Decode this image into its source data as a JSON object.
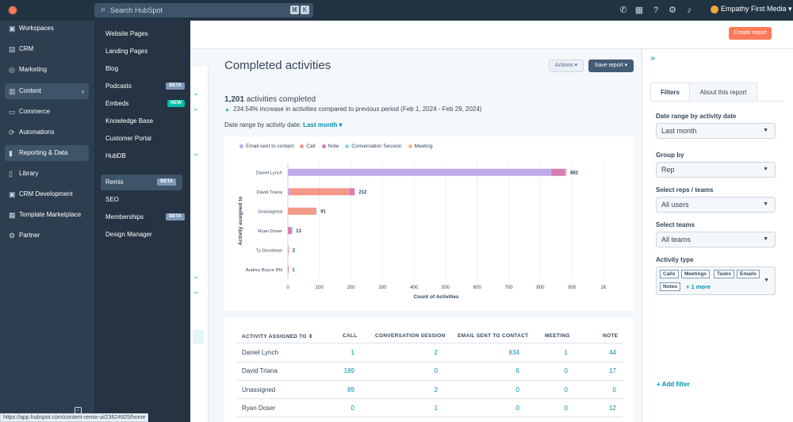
{
  "topbar": {
    "search_placeholder": "Search HubSpot",
    "kbd1": "⌘",
    "kbd2": "K",
    "account_name": "Empathy First Media"
  },
  "leftnav": {
    "items": [
      {
        "label": "Workspaces",
        "icon": "workspaces-icon"
      },
      {
        "label": "CRM",
        "icon": "crm-icon"
      },
      {
        "label": "Marketing",
        "icon": "marketing-icon"
      },
      {
        "label": "Content",
        "icon": "content-icon"
      },
      {
        "label": "Commerce",
        "icon": "commerce-icon"
      },
      {
        "label": "Automations",
        "icon": "automations-icon"
      },
      {
        "label": "Reporting & Data",
        "icon": "reporting-icon"
      },
      {
        "label": "Library",
        "icon": "library-icon"
      },
      {
        "label": "CRM Development",
        "icon": "crm-development-icon"
      },
      {
        "label": "Template Marketplace",
        "icon": "template-marketplace-icon"
      },
      {
        "label": "Partner",
        "icon": "partner-icon"
      }
    ]
  },
  "flyout": {
    "items": [
      {
        "label": "Website Pages",
        "badge": ""
      },
      {
        "label": "Landing Pages",
        "badge": ""
      },
      {
        "label": "Blog",
        "badge": ""
      },
      {
        "label": "Podcasts",
        "badge": "BETA"
      },
      {
        "label": "Embeds",
        "badge": "NEW"
      },
      {
        "label": "Knowledge Base",
        "badge": ""
      },
      {
        "label": "Customer Portal",
        "badge": ""
      },
      {
        "label": "HubDB",
        "badge": ""
      },
      {
        "label": "Remix",
        "badge": "BETA"
      },
      {
        "label": "SEO",
        "badge": ""
      },
      {
        "label": "Memberships",
        "badge": "BETA"
      },
      {
        "label": "Design Manager",
        "badge": ""
      }
    ]
  },
  "header": {
    "create_report": "Create report"
  },
  "report": {
    "title": "Completed activities",
    "actions": "Actions ▾",
    "save": "Save report ▾",
    "count": "1,201",
    "count_suffix": " activities completed",
    "delta": "234.54% increase in activities compared to previous period (Feb 1, 2024 - Feb 29, 2024)",
    "date_range_label": "Date range by activity date: ",
    "date_range_value": "Last month ▾"
  },
  "chart_data": {
    "type": "bar",
    "orientation": "horizontal",
    "stacked": true,
    "categories": [
      "Daniel Lynch",
      "David Triana",
      "Unassigned",
      "Ryan Doser",
      "Ty Goodman",
      "Audrey Boyce RN"
    ],
    "totals": [
      882,
      212,
      91,
      13,
      2,
      1
    ],
    "series": [
      {
        "name": "Email sent to contact",
        "color": "#c0a9ea",
        "values": [
          834,
          6,
          0,
          0,
          0,
          0
        ]
      },
      {
        "name": "Call",
        "color": "#f2998a",
        "values": [
          1,
          189,
          89,
          0,
          0,
          0
        ]
      },
      {
        "name": "Note",
        "color": "#d67fb2",
        "values": [
          44,
          17,
          0,
          12,
          1,
          1
        ]
      },
      {
        "name": "Conversation Session",
        "color": "#8fd4dd",
        "values": [
          2,
          0,
          2,
          1,
          0,
          0
        ]
      },
      {
        "name": "Meeting",
        "color": "#f8b88f",
        "values": [
          1,
          0,
          0,
          0,
          1,
          0
        ]
      }
    ],
    "xlabel": "Count of Activities",
    "ylabel": "Activity assigned to",
    "xlim": [
      0,
      1000
    ],
    "xticks": [
      "0",
      "100",
      "200",
      "300",
      "400",
      "500",
      "600",
      "700",
      "800",
      "900",
      "1K"
    ],
    "legend": "top-left",
    "grid": true
  },
  "table": {
    "headers": [
      "ACTIVITY ASSIGNED TO",
      "CALL",
      "CONVERSATION SESSION",
      "EMAIL SENT TO CONTACT",
      "MEETING",
      "NOTE"
    ],
    "sort_icon": "⇕",
    "rows": [
      {
        "name": "Daniel Lynch",
        "call": "1",
        "conv": "2",
        "email": "834",
        "meeting": "1",
        "note": "44"
      },
      {
        "name": "David Triana",
        "call": "189",
        "conv": "0",
        "email": "6",
        "meeting": "0",
        "note": "17"
      },
      {
        "name": "Unassigned",
        "call": "89",
        "conv": "2",
        "email": "0",
        "meeting": "0",
        "note": "0"
      },
      {
        "name": "Ryan Doser",
        "call": "0",
        "conv": "1",
        "email": "0",
        "meeting": "0",
        "note": "12"
      }
    ]
  },
  "rpanel": {
    "tab_filters": "Filters",
    "tab_about": "About this report",
    "date_label": "Date range by activity date",
    "date_value": "Last month",
    "group_label": "Group by",
    "group_value": "Rep",
    "reps_label": "Select reps / teams",
    "reps_value": "All users",
    "teams_label": "Select teams",
    "teams_value": "All teams",
    "type_label": "Activity type",
    "tags": [
      "Calls",
      "Meetings",
      "Tasks",
      "Emails",
      "Notes"
    ],
    "more": "+ 1 more",
    "add_filter": "Add filter"
  },
  "status_url": "https://app.hubspot.com/content-remix-ui/23624925/home"
}
